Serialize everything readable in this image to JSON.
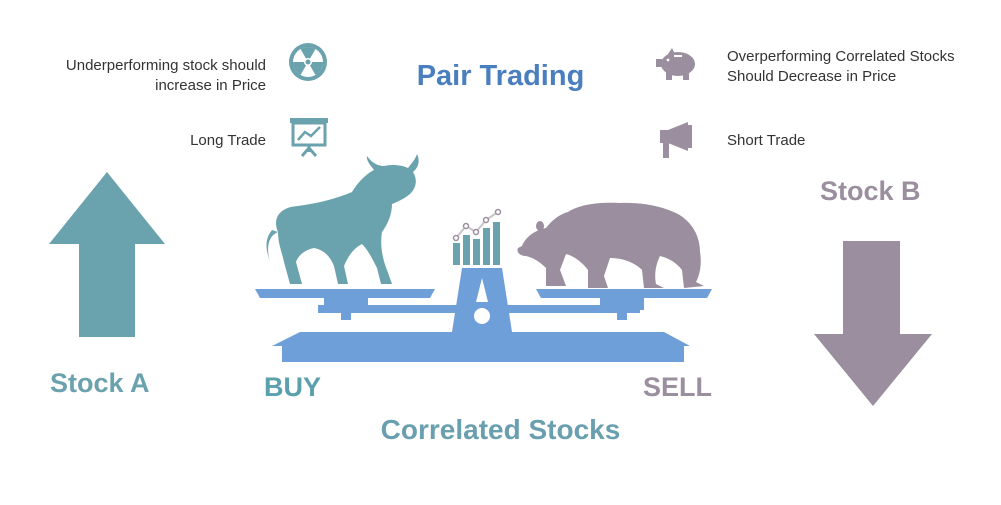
{
  "title": "Pair Trading",
  "subtitle": "Correlated Stocks",
  "left": {
    "note_top": "Underperforming stock should increase in Price",
    "note_top_line1": "Underperforming stock should",
    "note_top_line2": "increase in Price",
    "note_trade": "Long Trade",
    "stock_label": "Stock A",
    "action": "BUY",
    "icons": [
      "radiation-icon",
      "chart-board-icon",
      "up-arrow-icon",
      "bull-icon"
    ]
  },
  "right": {
    "note_top_line1": "Overperforming Correlated Stocks",
    "note_top_line2": "Should Decrease in Price",
    "note_trade": "Short Trade",
    "stock_label": "Stock B",
    "action": "SELL",
    "icons": [
      "piggy-bank-icon",
      "megaphone-icon",
      "down-arrow-icon",
      "bear-icon"
    ]
  },
  "colors": {
    "teal": "#6aa2ad",
    "mauve": "#9a8e9f",
    "scale_blue": "#6f9fd8",
    "title_blue": "#4a7fbf"
  }
}
